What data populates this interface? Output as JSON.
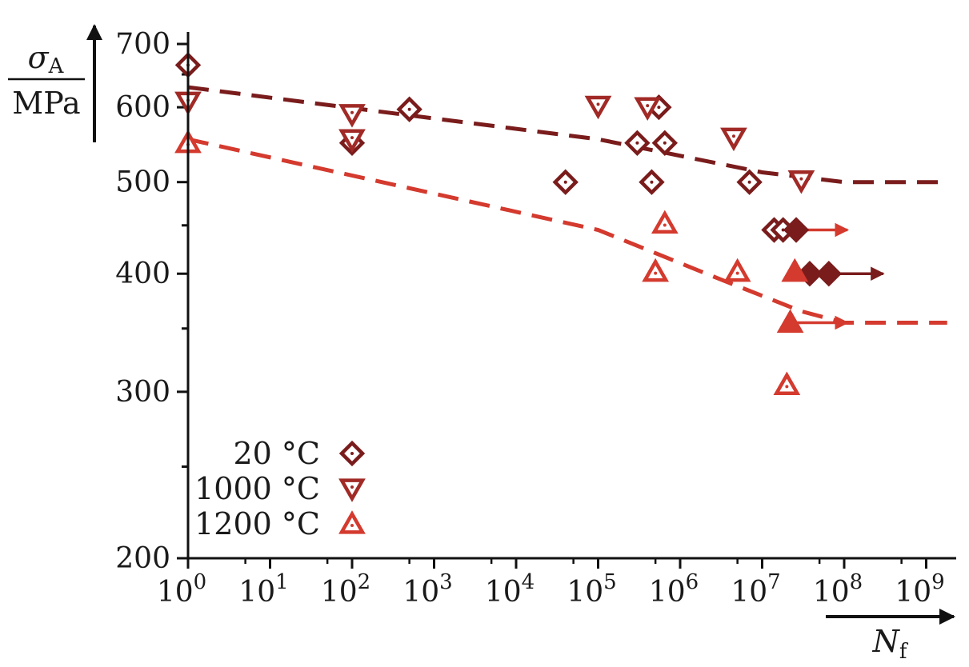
{
  "chart_data": {
    "type": "scatter",
    "title": "",
    "xscale": "log",
    "yscale": "log",
    "xlim": [
      1,
      2000000000
    ],
    "ylim": [
      200,
      700
    ],
    "xlabel": {
      "symbol": "N",
      "subscript": "f"
    },
    "ylabel": {
      "symbol": "σ",
      "subscript": "A",
      "unit": "MPa"
    },
    "xticks": [
      {
        "value": 1,
        "base": "10",
        "exp": "0"
      },
      {
        "value": 10,
        "base": "10",
        "exp": "1"
      },
      {
        "value": 100,
        "base": "10",
        "exp": "2"
      },
      {
        "value": 1000,
        "base": "10",
        "exp": "3"
      },
      {
        "value": 10000,
        "base": "10",
        "exp": "4"
      },
      {
        "value": 100000,
        "base": "10",
        "exp": "5"
      },
      {
        "value": 1000000,
        "base": "10",
        "exp": "6"
      },
      {
        "value": 10000000,
        "base": "10",
        "exp": "7"
      },
      {
        "value": 100000000,
        "base": "10",
        "exp": "8"
      },
      {
        "value": 1000000000,
        "base": "10",
        "exp": "9"
      }
    ],
    "yticks": [
      {
        "value": 200,
        "label": "200"
      },
      {
        "value": 300,
        "label": "300"
      },
      {
        "value": 400,
        "label": "400"
      },
      {
        "value": 500,
        "label": "500"
      },
      {
        "value": 600,
        "label": "600"
      },
      {
        "value": 700,
        "label": "700"
      }
    ],
    "yminor": [
      250,
      350,
      450,
      550,
      650
    ],
    "legend_position": "bottom-left",
    "series": [
      {
        "name": "20 °C",
        "marker": "diamond",
        "color": "#7a1c1c",
        "points": [
          {
            "x": 1,
            "y": 665
          },
          {
            "x": 100,
            "y": 550
          },
          {
            "x": 500,
            "y": 597
          },
          {
            "x": 40000,
            "y": 500
          },
          {
            "x": 300000,
            "y": 550
          },
          {
            "x": 450000,
            "y": 500
          },
          {
            "x": 550000,
            "y": 600
          },
          {
            "x": 650000,
            "y": 550
          },
          {
            "x": 7000000,
            "y": 500
          },
          {
            "x": 14000000,
            "y": 445
          },
          {
            "x": 18000000,
            "y": 445
          }
        ],
        "runouts": [
          {
            "x": 26000000,
            "y": 445
          },
          {
            "x": 38000000,
            "y": 400
          },
          {
            "x": 65000000,
            "y": 400
          }
        ]
      },
      {
        "name": "1000 °C",
        "marker": "triangle-down",
        "color": "#a12a26",
        "points": [
          {
            "x": 1,
            "y": 608
          },
          {
            "x": 100,
            "y": 590
          },
          {
            "x": 100,
            "y": 555
          },
          {
            "x": 100000,
            "y": 602
          },
          {
            "x": 400000,
            "y": 600
          },
          {
            "x": 4500000,
            "y": 557
          },
          {
            "x": 30000000,
            "y": 502
          }
        ],
        "runouts": []
      },
      {
        "name": "1200 °C",
        "marker": "triangle-up",
        "color": "#d43a2e",
        "points": [
          {
            "x": 1,
            "y": 550
          },
          {
            "x": 500000,
            "y": 402
          },
          {
            "x": 650000,
            "y": 452
          },
          {
            "x": 5000000,
            "y": 402
          },
          {
            "x": 20000000,
            "y": 305
          }
        ],
        "runouts": [
          {
            "x": 25000000,
            "y": 402
          },
          {
            "x": 22000000,
            "y": 355
          }
        ]
      }
    ],
    "arrows": [
      {
        "from": [
          26000000,
          445
        ],
        "to": [
          110000000,
          445
        ],
        "color": "#d43a2e"
      },
      {
        "from": [
          38000000,
          400
        ],
        "to": [
          300000000,
          400
        ],
        "color": "#7a1c1c"
      },
      {
        "from": [
          25000000,
          400
        ],
        "to": [
          90000000,
          400
        ],
        "color": "#d43a2e"
      },
      {
        "from": [
          22000000,
          355
        ],
        "to": [
          110000000,
          355
        ],
        "color": "#d43a2e"
      }
    ],
    "trend_lines": [
      {
        "color": "#7a1c1c",
        "points": [
          [
            1,
            630
          ],
          [
            100000,
            555
          ],
          [
            10000000,
            512
          ],
          [
            100000000,
            500
          ],
          [
            1800000000,
            500
          ]
        ]
      },
      {
        "color": "#d43a2e",
        "points": [
          [
            1,
            555
          ],
          [
            100000,
            445
          ],
          [
            3000000,
            395
          ],
          [
            30000000,
            365
          ],
          [
            100000000,
            355
          ],
          [
            1800000000,
            355
          ]
        ]
      }
    ]
  }
}
